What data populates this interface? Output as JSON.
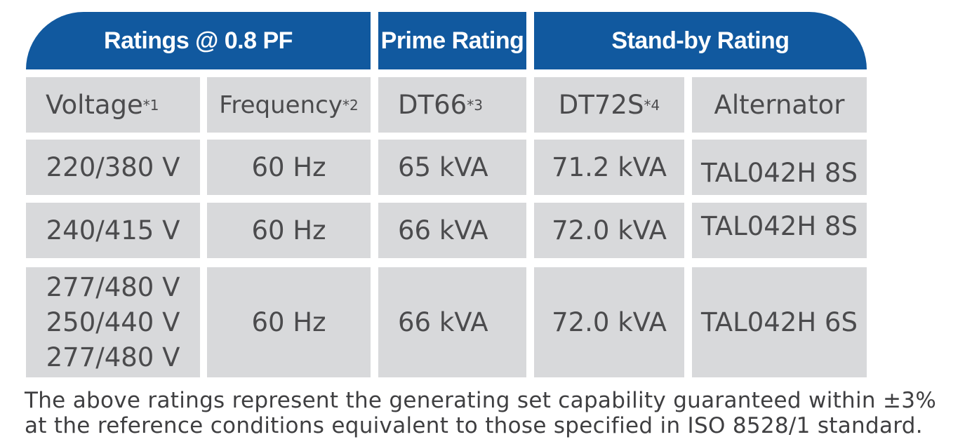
{
  "header": {
    "ratings": "Ratings @ 0.8 PF",
    "prime": "Prime Rating",
    "standby": "Stand-by Rating"
  },
  "columns": {
    "voltage": {
      "label": "Voltage",
      "sup": "*1"
    },
    "frequency": {
      "label": "Frequency",
      "sup": "*2"
    },
    "dt66": {
      "label": "DT66",
      "sup": "*3"
    },
    "dt72s": {
      "label": "DT72S",
      "sup": "*4"
    },
    "alternator": {
      "label": "Alternator"
    }
  },
  "rows": [
    {
      "voltage": [
        "220/380 V"
      ],
      "frequency": "60 Hz",
      "prime": "65 kVA",
      "standby": "71.2 kVA",
      "alternator": "TAL042H 8S"
    },
    {
      "voltage": [
        "240/415 V"
      ],
      "frequency": "60 Hz",
      "prime": "66 kVA",
      "standby": "72.0 kVA",
      "alternator": "TAL042H 8S"
    },
    {
      "voltage": [
        "277/480 V",
        "250/440 V",
        "277/480 V"
      ],
      "frequency": "60 Hz",
      "prime": "66 kVA",
      "standby": "72.0 kVA",
      "alternator": "TAL042H 6S"
    }
  ],
  "footnote": {
    "line1": "The above ratings represent the generating set capability guaranteed within ±3%",
    "line2": "at the reference conditions equivalent to those specified in ISO 8528/1 standard."
  },
  "colors": {
    "header_bg": "#11599f",
    "cell_bg": "#d8d9db",
    "text": "#4b4b4d"
  }
}
